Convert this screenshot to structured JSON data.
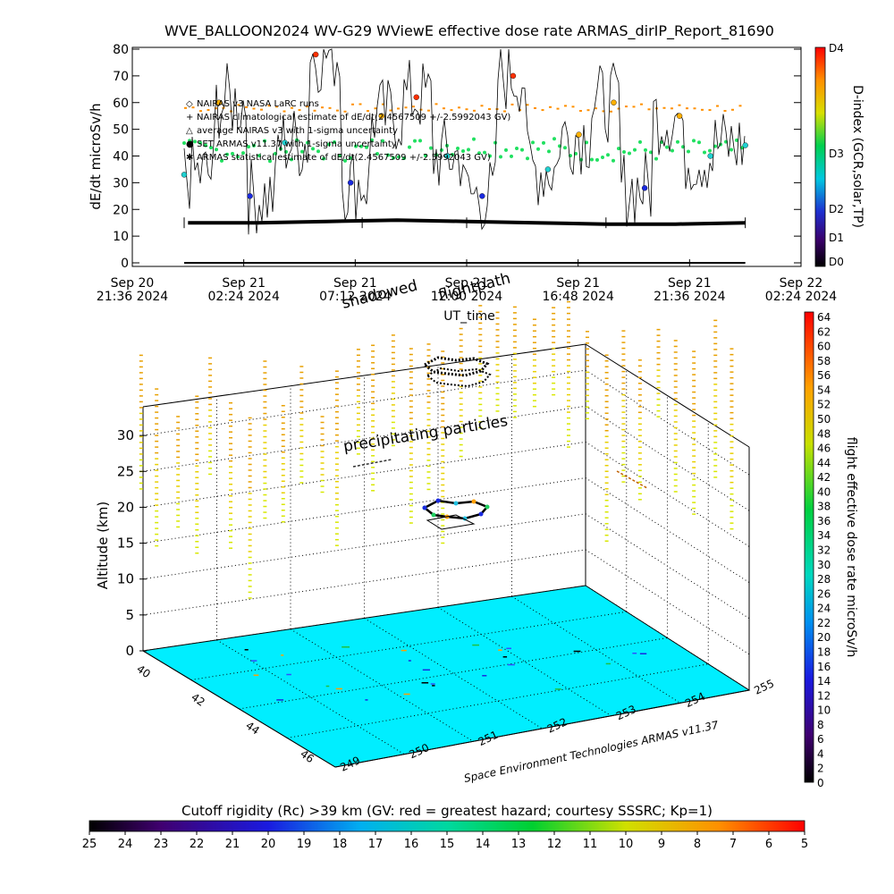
{
  "top_panel": {
    "title": "WVE_BALLOON2024 WV-G29 WViewE effective dose rate ARMAS_dirIP_Report_81690",
    "ylabel": "dE/dt microSv/h",
    "xlabel": "UT_time",
    "xticks": [
      [
        "Sep 20",
        "21:36 2024"
      ],
      [
        "Sep 21",
        "02:24 2024"
      ],
      [
        "Sep 21",
        "07:12 2024"
      ],
      [
        "Sep 21",
        "12:00 2024"
      ],
      [
        "Sep 21",
        "16:48 2024"
      ],
      [
        "Sep 21",
        "21:36 2024"
      ],
      [
        "Sep 22",
        "02:24 2024"
      ]
    ],
    "right_axis_title": "D-index (GCR,solar,TP)",
    "right_axis_labels": [
      "D4",
      "D3",
      "D2",
      "D1",
      "D0"
    ],
    "legend": [
      "NAIRAS v3 NASA LaRC runs",
      "NAIRAS climatological estimate of dE/dt(2.4567509 +/-2.5992043 GV)",
      "average NAIRAS v3 with 1-sigma uncertainty",
      "SET ARMAS v11.37 with 1-sigma uncertainty",
      "ARMAS statistical estimate of dE/dt(2.4567509 +/-2.5992043 GV)"
    ]
  },
  "scene": {
    "zlabel": "Altitude (km)",
    "annotation_precipitating": "precipitating particles",
    "annotation_flightpath": "flightpath",
    "annotation_shadowed": "shadowed",
    "credit": "Space Environment Technologies ARMAS v11.37",
    "dose_bar_label": "flight effective dose rate microSv/h",
    "dose_bar_ticks": [
      "64",
      "62",
      "60",
      "58",
      "56",
      "54",
      "52",
      "50",
      "48",
      "46",
      "44",
      "42",
      "40",
      "38",
      "36",
      "34",
      "32",
      "30",
      "28",
      "26",
      "24",
      "22",
      "20",
      "18",
      "16",
      "14",
      "12",
      "10",
      "8",
      "6",
      "4",
      "2",
      "0"
    ],
    "cutoff_title": "Cutoff rigidity (Rc) >39 km (GV: red = greatest hazard; courtesy SSSRC; Kp=1)",
    "cutoff_ticks": [
      "25",
      "24",
      "23",
      "22",
      "21",
      "20",
      "19",
      "18",
      "17",
      "16",
      "15",
      "14",
      "13",
      "12",
      "11",
      "10",
      "9",
      "8",
      "7",
      "6",
      "5"
    ]
  },
  "chart_data": [
    {
      "type": "line",
      "title": "WVE_BALLOON2024 WV-G29 WViewE effective dose rate ARMAS_dirIP_Report_81690",
      "xlabel": "UT_time",
      "ylabel": "dE/dt microSv/h",
      "ylim": [
        0,
        80
      ],
      "yticks": [
        "0",
        "10",
        "20",
        "30",
        "40",
        "50",
        "60",
        "70",
        "80"
      ],
      "xrange": [
        "2024-09-20 21:36",
        "2024-09-22 02:24"
      ],
      "grid": false,
      "legend_position": "top-left",
      "series": [
        {
          "name": "ARMAS statistical estimate of dE/dt(2.4567509 +/-2.5992043 GV)",
          "x": [
            "2024-09-21 00:00",
            "2024-09-21 03:00",
            "2024-09-21 06:00",
            "2024-09-21 09:00",
            "2024-09-21 12:00",
            "2024-09-21 15:00",
            "2024-09-21 18:00",
            "2024-09-21 21:00",
            "2024-09-22 00:00"
          ],
          "values": [
            15,
            15,
            15.5,
            16,
            15.5,
            15,
            14.5,
            14.5,
            15
          ]
        },
        {
          "name": "NAIRAS climatological estimate of dE/dt(2.4567509 +/-2.5992043 GV)",
          "x": [
            "2024-09-21 00:00",
            "2024-09-21 03:00",
            "2024-09-21 06:00",
            "2024-09-21 09:00",
            "2024-09-21 12:00",
            "2024-09-21 15:00",
            "2024-09-21 18:00",
            "2024-09-21 21:00",
            "2024-09-22 00:00"
          ],
          "values": [
            58,
            58,
            58,
            58,
            58,
            58,
            58,
            58,
            58
          ]
        },
        {
          "name": "average NAIRAS v3 with 1-sigma uncertainty",
          "x": [
            "2024-09-21 00:00",
            "2024-09-21 03:00",
            "2024-09-21 06:00",
            "2024-09-21 09:00",
            "2024-09-21 12:00",
            "2024-09-21 15:00",
            "2024-09-21 18:00",
            "2024-09-21 21:00",
            "2024-09-22 00:00"
          ],
          "values": [
            42,
            42,
            42,
            43,
            44,
            43,
            42,
            42,
            42
          ]
        },
        {
          "name": "SET ARMAS v11.37 with 1-sigma uncertainty",
          "x": [
            "2024-09-20 23:50",
            "2024-09-21 01:20",
            "2024-09-21 02:40",
            "2024-09-21 04:10",
            "2024-09-21 05:30",
            "2024-09-21 07:00",
            "2024-09-21 08:20",
            "2024-09-21 09:50",
            "2024-09-21 11:10",
            "2024-09-21 12:40",
            "2024-09-21 14:00",
            "2024-09-21 15:30",
            "2024-09-21 16:50",
            "2024-09-21 18:20",
            "2024-09-21 19:40",
            "2024-09-21 21:10",
            "2024-09-21 22:30",
            "2024-09-22 00:00"
          ],
          "values": [
            33,
            60,
            25,
            45,
            78,
            30,
            55,
            62,
            40,
            25,
            70,
            35,
            48,
            60,
            28,
            55,
            40,
            44
          ]
        }
      ]
    },
    {
      "type": "scatter",
      "title": "",
      "zlabel": "Altitude (km)",
      "zlim": [
        0,
        34
      ],
      "zticks": [
        "0",
        "5",
        "10",
        "15",
        "20",
        "25",
        "30"
      ],
      "x_ticks": [
        "249",
        "250",
        "251",
        "252",
        "253",
        "254",
        "255"
      ],
      "y_ticks": [
        "40",
        "42",
        "44",
        "46"
      ],
      "annotations": [
        "precipitating particles",
        "flightpath",
        "shadowed"
      ],
      "series": [
        {
          "name": "flightpath",
          "points": [
            {
              "lon": 251.7,
              "lat": 42.8,
              "alt": 19.5
            },
            {
              "lon": 251.8,
              "lat": 42.9,
              "alt": 20.0
            },
            {
              "lon": 251.9,
              "lat": 43.0,
              "alt": 20.5
            },
            {
              "lon": 252.0,
              "lat": 42.9,
              "alt": 20.0
            },
            {
              "lon": 251.9,
              "lat": 42.8,
              "alt": 19.5
            }
          ]
        }
      ],
      "colorbar": {
        "label": "flight effective dose rate microSv/h",
        "range": [
          0,
          64
        ]
      }
    }
  ]
}
